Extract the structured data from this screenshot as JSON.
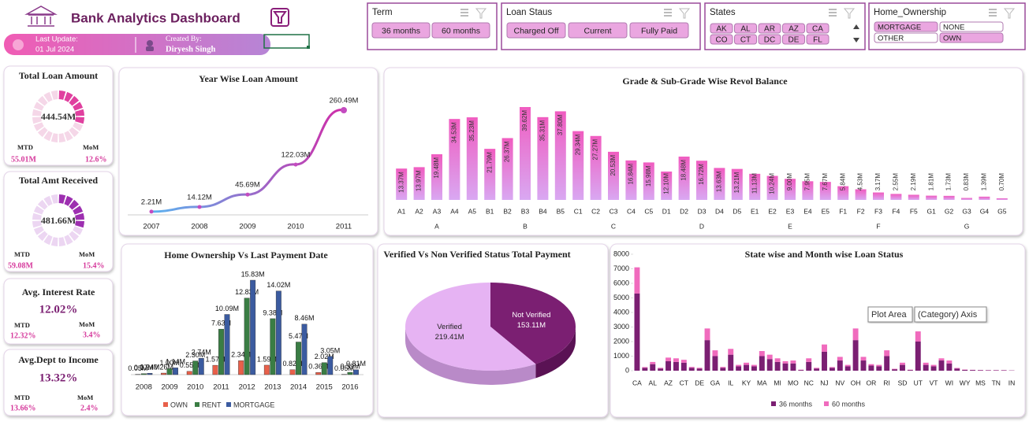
{
  "header": {
    "title": "Bank Analytics Dashboard",
    "last_update_label": "Last Update:",
    "last_update": "01 Jul 2024",
    "created_by_label": "Created By:",
    "created_by": "Diryesh Singh"
  },
  "slicers": [
    {
      "title": "Term",
      "items": [
        "36 months",
        "60 months"
      ],
      "selected": [
        true,
        true
      ]
    },
    {
      "title": "Loan Staus",
      "items": [
        "Charged Off",
        "Current",
        "Fully Paid"
      ],
      "selected": [
        true,
        true,
        true
      ]
    },
    {
      "title": "States",
      "items": [
        "AK",
        "AL",
        "AR",
        "AZ",
        "CA",
        "CO",
        "CT",
        "DC",
        "DE",
        "FL"
      ],
      "selected": [
        true,
        true,
        true,
        true,
        true,
        true,
        true,
        true,
        true,
        true
      ]
    },
    {
      "title": "Home_Ownership",
      "items": [
        "MORTGAGE",
        "NONE",
        "OTHER",
        "OWN"
      ],
      "selected": [
        true,
        false,
        false,
        true
      ]
    }
  ],
  "kpis": [
    {
      "title": "Total Loan Amount",
      "value": "444.54M",
      "mtd_label": "MTD",
      "mtd": "55.01M",
      "mom_label": "MoM",
      "mom": "12.6%"
    },
    {
      "title": "Total Amt Received",
      "value": "481.66M",
      "mtd_label": "MTD",
      "mtd": "59.08M",
      "mom_label": "MoM",
      "mom": "15.4%"
    },
    {
      "title": "Avg. Interest Rate",
      "value": "12.02%",
      "mtd_label": "MTD",
      "mtd": "12.32%",
      "mom_label": "MoM",
      "mom": "3.4%"
    },
    {
      "title": "Avg.Dept to Income",
      "value": "13.32%",
      "mtd_label": "MTD",
      "mtd": "13.66%",
      "mom_label": "MoM",
      "mom": "2.4%"
    }
  ],
  "tooltips": [
    "Plot Area",
    "(Category) Axis"
  ],
  "chart_data": [
    {
      "type": "line",
      "title": "Year Wise Loan Amount",
      "categories": [
        "2007",
        "2008",
        "2009",
        "2010",
        "2011"
      ],
      "values": [
        2.21,
        14.12,
        45.69,
        122.03,
        260.49
      ],
      "value_labels": [
        "2.21M",
        "14.12M",
        "45.69M",
        "122.03M",
        "260.49M"
      ],
      "color": "#c44bc0"
    },
    {
      "type": "bar",
      "title": "Grade & Sub-Grade Wise Revol Balance",
      "categories": [
        "A1",
        "A2",
        "A3",
        "A4",
        "A5",
        "B1",
        "B2",
        "B3",
        "B4",
        "B5",
        "C1",
        "C2",
        "C3",
        "C4",
        "C5",
        "D1",
        "D2",
        "D3",
        "D4",
        "D5",
        "E1",
        "E2",
        "E3",
        "E4",
        "E5",
        "F1",
        "F2",
        "F3",
        "F4",
        "F5",
        "G1",
        "G2",
        "G3",
        "G4",
        "G5"
      ],
      "group_labels": [
        "A",
        "B",
        "C",
        "D",
        "E",
        "F",
        "G"
      ],
      "values": [
        13.37,
        13.97,
        19.48,
        34.53,
        35.23,
        21.79,
        26.37,
        39.62,
        35.31,
        37.8,
        29.34,
        27.27,
        20.53,
        16.84,
        15.98,
        12.1,
        18.48,
        16.72,
        13.63,
        13.21,
        11.13,
        10.24,
        9.0,
        7.95,
        7.67,
        5.84,
        4.53,
        3.17,
        2.55,
        2.19,
        1.81,
        1.73,
        0.83,
        1.39,
        0.7
      ],
      "value_labels": [
        "13.37M",
        "13.97M",
        "19.48M",
        "34.53M",
        "35.23M",
        "21.79M",
        "26.37M",
        "39.62M",
        "35.31M",
        "37.80M",
        "29.34M",
        "27.27M",
        "20.53M",
        "16.84M",
        "15.98M",
        "12.10M",
        "18.48M",
        "16.72M",
        "13.63M",
        "13.21M",
        "11.13M",
        "10.24M",
        "9.00M",
        "7.95M",
        "7.67M",
        "5.84M",
        "4.53M",
        "3.17M",
        "2.55M",
        "2.19M",
        "1.81M",
        "1.73M",
        "0.83M",
        "1.39M",
        "0.70M"
      ],
      "color": "#f06bc8"
    },
    {
      "type": "grouped_bar",
      "title": "Home Ownership Vs Last Payment Date",
      "categories": [
        "2008",
        "2009",
        "2010",
        "2011",
        "2012",
        "2013",
        "2014",
        "2015",
        "2016"
      ],
      "series": [
        {
          "name": "OWN",
          "color": "#e8604a",
          "values": [
            0.05,
            0.26,
            0.55,
            1.57,
            2.34,
            1.59,
            0.82,
            0.36,
            0.05
          ],
          "value_labels": [
            "0.05M",
            "0.26M",
            "0.55M",
            "1.57M",
            "2.34M",
            "1.59M",
            "0.82M",
            "0.36M",
            "0.05M"
          ]
        },
        {
          "name": "RENT",
          "color": "#3a7d44",
          "values": [
            0.17,
            1.0,
            2.3,
            7.63,
            12.83,
            9.38,
            5.47,
            2.02,
            0.39
          ],
          "value_labels": [
            "0.17M",
            "1.00M",
            "2.30M",
            "7.63M",
            "12.83M",
            "9.38M",
            "5.47M",
            "2.02M",
            "0.39M"
          ]
        },
        {
          "name": "MORTGAGE",
          "color": "#3b5ba0",
          "values": [
            0.24,
            1.14,
            2.74,
            10.09,
            15.83,
            14.02,
            8.46,
            3.05,
            0.81
          ],
          "value_labels": [
            "0.24M",
            "1.14M",
            "2.74M",
            "10.09M",
            "15.83M",
            "14.02M",
            "8.46M",
            "3.05M",
            "0.81M"
          ]
        }
      ]
    },
    {
      "type": "pie",
      "title": "Verified Vs Non Verified Status Total Payment",
      "categories": [
        "Not Verified",
        "Verified"
      ],
      "values": [
        153.11,
        219.41
      ],
      "value_labels": [
        "153.11M",
        "219.41M"
      ],
      "colors": [
        "#7b1f72",
        "#e6b3f3"
      ]
    },
    {
      "type": "stacked_bar",
      "title": "State wise and Month wise Loan Status",
      "categories": [
        "CA",
        null,
        "AL",
        null,
        "AZ",
        null,
        "CT",
        null,
        "DE",
        null,
        "GA",
        null,
        "IL",
        null,
        "KY",
        null,
        "MA",
        null,
        "MI",
        null,
        "MO",
        null,
        "NC",
        null,
        "NJ",
        null,
        "NV",
        null,
        "OH",
        null,
        "OR",
        null,
        "RI",
        null,
        "SD",
        null,
        "UT",
        null,
        "VT",
        null,
        "WI",
        null,
        "WY",
        null,
        "MS",
        null,
        "TN",
        null,
        "IN"
      ],
      "series": [
        {
          "name": "36 months",
          "color": "#7b1f72",
          "values": [
            5300,
            200,
            450,
            150,
            650,
            600,
            550,
            200,
            150,
            2100,
            1000,
            200,
            1100,
            300,
            400,
            300,
            1000,
            800,
            600,
            500,
            500,
            50,
            600,
            150,
            1300,
            200,
            700,
            300,
            2100,
            700,
            350,
            300,
            1000,
            100,
            400,
            50,
            2000,
            400,
            300,
            700,
            500,
            150,
            60,
            50,
            40,
            30,
            30,
            30,
            20
          ]
        },
        {
          "name": "60 months",
          "color": "#f06bbd",
          "values": [
            1800,
            50,
            150,
            50,
            250,
            250,
            200,
            60,
            50,
            800,
            400,
            60,
            400,
            100,
            150,
            100,
            350,
            300,
            250,
            150,
            200,
            20,
            250,
            50,
            500,
            50,
            250,
            100,
            800,
            250,
            100,
            100,
            400,
            30,
            150,
            20,
            700,
            150,
            100,
            150,
            200,
            40,
            20,
            10,
            10,
            10,
            10,
            10,
            5
          ]
        }
      ],
      "ylim": [
        0,
        8000
      ],
      "yticks": [
        0,
        1000,
        2000,
        3000,
        4000,
        5000,
        6000,
        7000,
        8000
      ]
    }
  ]
}
